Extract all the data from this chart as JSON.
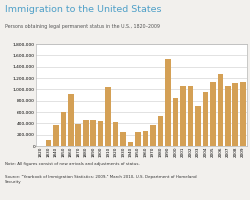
{
  "title": "Immigration to the United States",
  "subtitle": "Persons obtaining legal permanent status in the U.S., 1820–2009",
  "note": "Note: All figures consist of new arrivals and adjustments of status.",
  "source": "Source: \"Yearbook of Immigration Statistics: 2009,\" March 2010, U.S. Department of Homeland\nSecurity",
  "title_color": "#4FA0C8",
  "subtitle_color": "#555555",
  "bar_color": "#D4A055",
  "background_color": "#F2F0ED",
  "plot_bg": "#FFFFFF",
  "border_color": "#AAAAAA",
  "categories": [
    "1820",
    "1830",
    "1840",
    "1850",
    "1860",
    "1870",
    "1880",
    "1890",
    "1900",
    "1910",
    "1920",
    "1930",
    "1940",
    "1950",
    "1960",
    "1970",
    "1980",
    "1990",
    "2000",
    "2001",
    "2002",
    "2003",
    "2004",
    "2005",
    "2006",
    "2007",
    "2008",
    "2009"
  ],
  "values": [
    8385,
    98817,
    369980,
    599125,
    914119,
    387203,
    457257,
    455302,
    448572,
    1041570,
    430001,
    241700,
    70756,
    249187,
    265398,
    373326,
    530639,
    1535872,
    849807,
    1058902,
    1063732,
    703542,
    957883,
    1122257,
    1266264,
    1052415,
    1107126,
    1130818
  ],
  "ylim": [
    0,
    1800000
  ],
  "yticks": [
    0,
    200000,
    400000,
    600000,
    800000,
    1000000,
    1200000,
    1400000,
    1600000,
    1800000
  ],
  "ytick_labels": [
    "0",
    "200,000",
    "400,000",
    "600,000",
    "800,000",
    "1,000,000",
    "1,200,000",
    "1,400,000",
    "1,600,000",
    "1,800,000"
  ]
}
